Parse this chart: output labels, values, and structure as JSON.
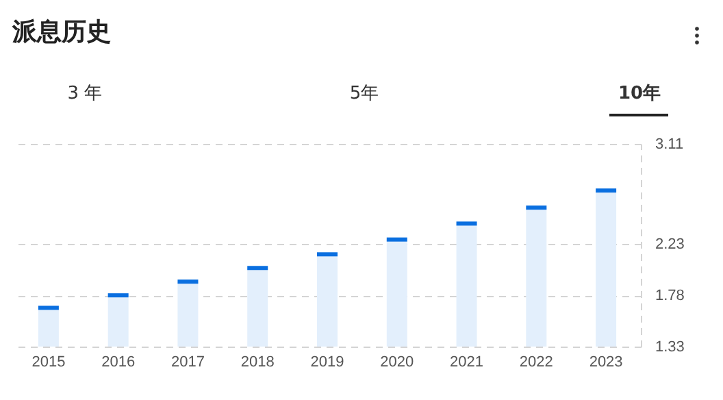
{
  "chart_data": {
    "type": "bar",
    "title": "派息历史",
    "annotations": [
      "3 年",
      "5年",
      "10年"
    ],
    "categories": [
      "2015",
      "2016",
      "2017",
      "2018",
      "2019",
      "2020",
      "2021",
      "2022",
      "2023"
    ],
    "series": [
      {
        "color": "#e3effc",
        "values": [
          1.67,
          1.78,
          1.9,
          2.02,
          2.14,
          2.27,
          2.41,
          2.55,
          2.7
        ]
      }
    ],
    "ylim": [
      1.33,
      3.11
    ],
    "yticks": [
      1.33,
      1.78,
      2.23,
      3.11
    ],
    "grid": "y"
  }
}
